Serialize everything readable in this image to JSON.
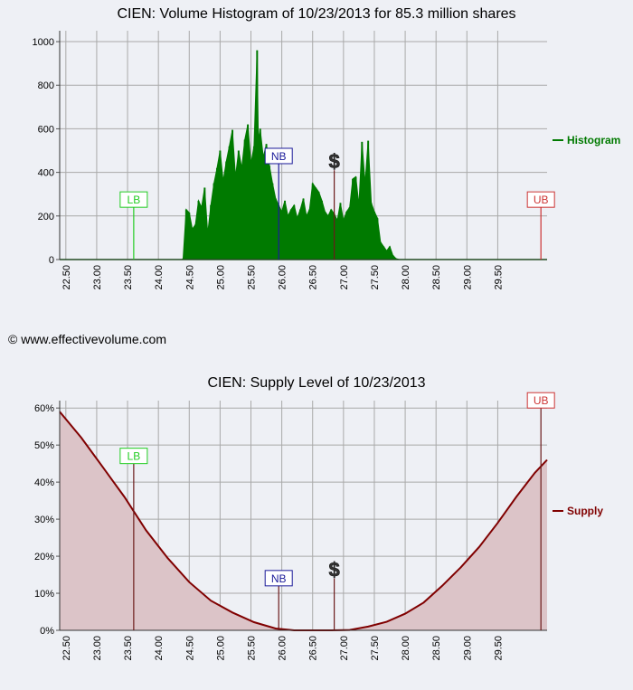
{
  "credit": "© www.effectivevolume.com",
  "chart_data": [
    {
      "type": "area",
      "title": "CIEN: Volume Histogram of 10/23/2013 for 85.3 million shares",
      "xlabel": "",
      "ylabel": "",
      "xlim": [
        22.4,
        30.3
      ],
      "ylim": [
        0,
        1050
      ],
      "x_ticks": [
        "22.50",
        "23.00",
        "23.50",
        "24.00",
        "24.50",
        "25.00",
        "25.50",
        "26.00",
        "26.50",
        "27.00",
        "27.50",
        "28.00",
        "28.50",
        "29.00",
        "29.50"
      ],
      "y_ticks": [
        "0",
        "200",
        "400",
        "600",
        "800",
        "1000"
      ],
      "grid": true,
      "legend": "right",
      "series": [
        {
          "name": "Histogram",
          "color": "#007a00",
          "x": [
            24.4,
            24.45,
            24.5,
            24.55,
            24.6,
            24.65,
            24.7,
            24.75,
            24.8,
            24.85,
            24.9,
            24.95,
            25.0,
            25.05,
            25.1,
            25.15,
            25.2,
            25.25,
            25.3,
            25.35,
            25.4,
            25.45,
            25.5,
            25.55,
            25.6,
            25.62,
            25.65,
            25.7,
            25.75,
            25.8,
            25.85,
            25.9,
            25.95,
            26.0,
            26.05,
            26.1,
            26.15,
            26.2,
            26.25,
            26.3,
            26.35,
            26.4,
            26.45,
            26.5,
            26.55,
            26.6,
            26.65,
            26.7,
            26.75,
            26.8,
            26.85,
            26.9,
            26.95,
            27.0,
            27.05,
            27.1,
            27.15,
            27.2,
            27.25,
            27.3,
            27.35,
            27.4,
            27.45,
            27.5,
            27.55,
            27.6,
            27.65,
            27.7,
            27.75,
            27.8,
            27.85
          ],
          "values": [
            5,
            230,
            215,
            140,
            160,
            270,
            240,
            330,
            120,
            250,
            350,
            420,
            500,
            360,
            450,
            520,
            595,
            380,
            500,
            420,
            550,
            620,
            440,
            520,
            960,
            550,
            600,
            470,
            530,
            430,
            350,
            280,
            250,
            220,
            270,
            200,
            230,
            250,
            190,
            230,
            280,
            200,
            230,
            350,
            330,
            310,
            270,
            220,
            200,
            230,
            210,
            180,
            260,
            180,
            220,
            240,
            370,
            380,
            250,
            540,
            350,
            545,
            260,
            220,
            190,
            80,
            60,
            40,
            60,
            20,
            5
          ]
        }
      ],
      "markers": [
        {
          "label": "LB",
          "x": 23.6,
          "value": 240,
          "color": "#22cc22"
        },
        {
          "label": "NB",
          "x": 25.95,
          "value": 440,
          "color": "#1a1a99"
        },
        {
          "label": "$",
          "x": 26.85,
          "value": 410,
          "color": "#444444"
        },
        {
          "label": "UB",
          "x": 30.2,
          "value": 240,
          "color": "#cc3333"
        }
      ]
    },
    {
      "type": "area",
      "title": "CIEN: Supply Level of 10/23/2013",
      "xlabel": "",
      "ylabel": "",
      "xlim": [
        22.4,
        30.3
      ],
      "ylim": [
        0,
        62
      ],
      "x_ticks": [
        "22.50",
        "23.00",
        "23.50",
        "24.00",
        "24.50",
        "25.00",
        "25.50",
        "26.00",
        "26.50",
        "27.00",
        "27.50",
        "28.00",
        "28.50",
        "29.00",
        "29.50"
      ],
      "y_ticks": [
        "0%",
        "10%",
        "20%",
        "30%",
        "40%",
        "50%",
        "60%"
      ],
      "grid": true,
      "legend": "right",
      "series": [
        {
          "name": "Supply",
          "color": "#800000",
          "fill": "#dcc4c8",
          "x": [
            22.4,
            22.75,
            23.1,
            23.45,
            23.8,
            24.15,
            24.5,
            24.85,
            25.2,
            25.55,
            25.9,
            26.2,
            26.5,
            26.8,
            27.1,
            27.4,
            27.7,
            28.0,
            28.3,
            28.6,
            28.9,
            29.2,
            29.5,
            29.8,
            30.1,
            30.3
          ],
          "values": [
            59,
            52,
            44,
            36,
            27,
            19.5,
            13,
            8,
            4.8,
            2.2,
            0.5,
            0,
            0,
            0,
            0.1,
            1,
            2.3,
            4.5,
            7.5,
            12,
            17,
            22.5,
            29,
            36,
            42.5,
            46
          ]
        }
      ],
      "markers": [
        {
          "label": "LB",
          "x": 23.6,
          "value": 45,
          "color": "#22cc22"
        },
        {
          "label": "NB",
          "x": 25.95,
          "value": 12,
          "color": "#1a1a99"
        },
        {
          "label": "$",
          "x": 26.85,
          "value": 14,
          "color": "#444444"
        },
        {
          "label": "UB",
          "x": 30.2,
          "value": 60,
          "color": "#cc3333"
        }
      ]
    }
  ]
}
